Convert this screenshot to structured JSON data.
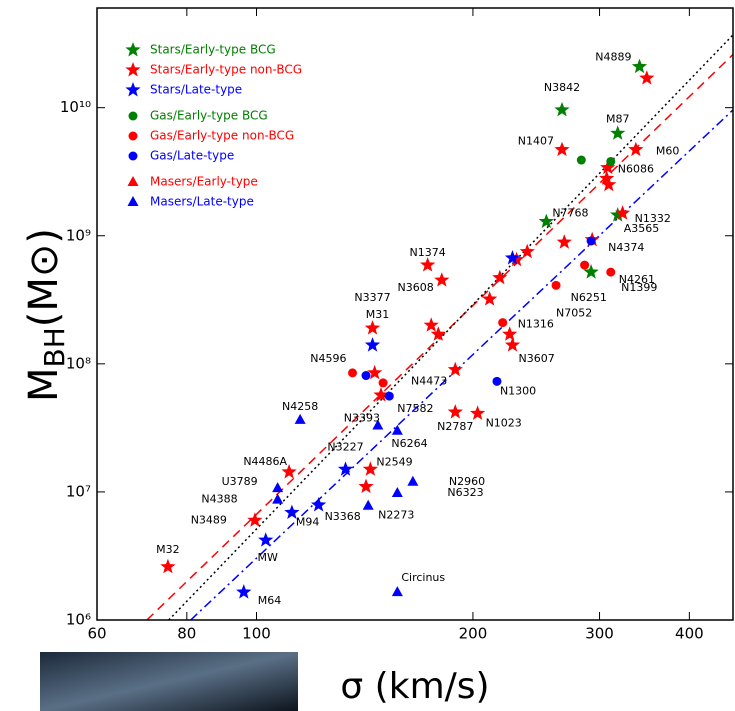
{
  "chart_data": {
    "type": "scatter",
    "xlabel": "σ (km/s)",
    "ylabel": {
      "main": "M",
      "sub": "BH",
      "rest": "(M⊙)"
    },
    "xscale": "log",
    "yscale": "log",
    "xlim": [
      60,
      460
    ],
    "ylim": [
      1000000,
      60000000000
    ],
    "xticks": [
      60,
      80,
      100,
      200,
      300,
      400
    ],
    "yticks": [
      {
        "value": 1000000,
        "label": "10⁶"
      },
      {
        "value": 10000000,
        "label": "10⁷"
      },
      {
        "value": 100000000,
        "label": "10⁸"
      },
      {
        "value": 1000000000,
        "label": "10⁹"
      },
      {
        "value": 10000000000,
        "label": "10¹⁰"
      }
    ],
    "legend": "upper left",
    "series": [
      {
        "name": "Stars/Early-type BCG",
        "color": "#008000",
        "marker": "star",
        "x": [
          341,
          266,
          318,
          253,
          318,
          292
        ],
        "values": [
          20900000000,
          9600000000,
          6300000000,
          1290000000,
          1450000000,
          520000000
        ],
        "labels": [
          "N4889",
          "N3842",
          "M87",
          "N7768",
          "A3565",
          "N1399"
        ]
      },
      {
        "name": "Stars/Early-type non-BCG",
        "color": "#ff0000",
        "marker": "star",
        "x": [
          349,
          266,
          337,
          308,
          309,
          307,
          323,
          293,
          268,
          173,
          181,
          145,
          175,
          179,
          225,
          227,
          211,
          218,
          230,
          238,
          189,
          146,
          149,
          189,
          203,
          144,
          142,
          111,
          99.5,
          75.3
        ],
        "values": [
          17000000000,
          4700000000,
          4700000000,
          3400000000,
          2500000000,
          2800000000,
          1500000000,
          930000000,
          890000000,
          590000000,
          450000000,
          190000000,
          200000000,
          170000000,
          170000000,
          140000000,
          320000000,
          470000000,
          650000000,
          750000000,
          90000000,
          85000000,
          57000000,
          42000000,
          41000000,
          15000000,
          11000000,
          14300000,
          6000000,
          2600000
        ],
        "labels": [
          null,
          "N1407",
          "M60",
          "N6086",
          null,
          null,
          "N1332",
          "N4374",
          null,
          "N1374",
          "N3608",
          "N3377",
          null,
          null,
          "N1316",
          "N3607",
          null,
          null,
          null,
          null,
          "N4473",
          null,
          null,
          "N2787",
          "N1023",
          "N2549",
          null,
          "N4486A",
          "N3489",
          "M32"
        ]
      },
      {
        "name": "Stars/Late-type",
        "color": "#0000ff",
        "marker": "star",
        "x": [
          227,
          145,
          133,
          122,
          112,
          103,
          96
        ],
        "values": [
          670000000,
          140000000,
          15000000,
          7900000,
          6900000,
          4200000,
          1650000
        ],
        "labels": [
          null,
          "M31",
          "N3227",
          "N3368",
          "M94",
          "MW",
          "M64"
        ]
      },
      {
        "name": "Gas/Early-type BCG",
        "color": "#008000",
        "marker": "circle",
        "x": [
          283,
          311
        ],
        "values": [
          3900000000,
          3800000000
        ],
        "labels": [
          null,
          null
        ]
      },
      {
        "name": "Gas/Early-type non-BCG",
        "color": "#ff0000",
        "marker": "circle",
        "x": [
          136,
          150,
          311,
          286,
          261,
          220
        ],
        "values": [
          85000000,
          71000000,
          520000000,
          590000000,
          410000000,
          210000000
        ],
        "labels": [
          "N4596",
          null,
          "N4261",
          "N6251",
          "N7052",
          null
        ]
      },
      {
        "name": "Gas/Late-type",
        "color": "#0000ff",
        "marker": "circle",
        "x": [
          142,
          153,
          216,
          292
        ],
        "values": [
          81000000,
          56000000,
          73000000,
          910000000
        ],
        "labels": [
          null,
          "N7582",
          "N1300",
          null
        ]
      },
      {
        "name": "Masers/Early-type",
        "color": "#ff0000",
        "marker": "triangle",
        "x": [],
        "values": [],
        "labels": []
      },
      {
        "name": "Masers/Late-type",
        "color": "#0000ff",
        "marker": "triangle",
        "x": [
          115,
          147.5,
          157,
          165,
          157,
          143,
          107,
          107,
          157
        ],
        "values": [
          36500000,
          33000000,
          30000000,
          12000000,
          9800000,
          7800000,
          10700000,
          8700000,
          1650000
        ],
        "labels": [
          "N4258",
          "N3393",
          "N6264",
          "N2960",
          "N6323",
          "N2273",
          "U3789",
          "N4388",
          "Circinus"
        ]
      }
    ],
    "fits": [
      {
        "color": "#ff0000",
        "dash": "dashed",
        "x": [
          70.4,
          460
        ],
        "values": [
          1000000,
          26000000000
        ]
      },
      {
        "color": "#0000ff",
        "dash": "dashdot",
        "x": [
          81,
          460
        ],
        "values": [
          1000000,
          9600000000
        ]
      },
      {
        "color": "#000000",
        "dash": "dotted",
        "x": [
          75.5,
          460
        ],
        "values": [
          1000000,
          37000000000
        ]
      }
    ]
  }
}
